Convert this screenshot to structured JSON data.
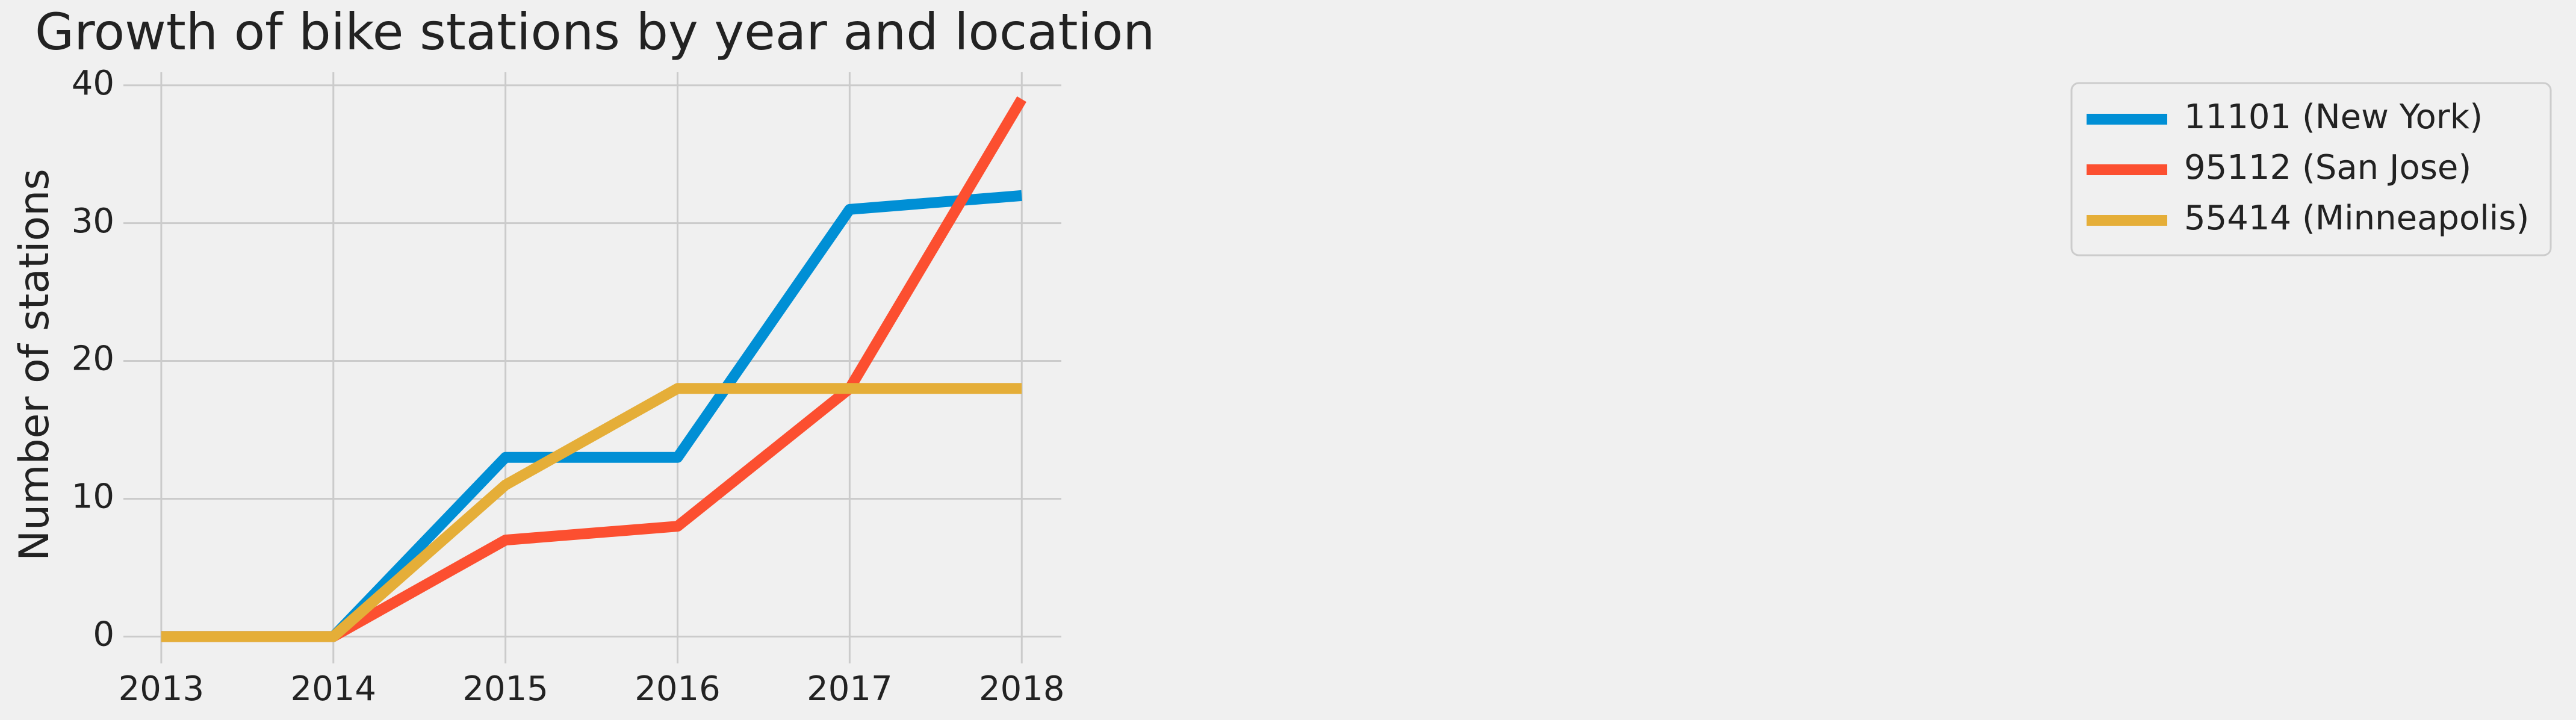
{
  "chart_data": {
    "type": "line",
    "title": "Growth of bike stations by year and location",
    "xlabel": "",
    "ylabel": "Number of stations",
    "x": [
      2013,
      2014,
      2015,
      2016,
      2017,
      2018
    ],
    "xlim": [
      2012.78,
      2018.23
    ],
    "ylim": [
      -1.95,
      40.95
    ],
    "xticks": [
      "2013",
      "2014",
      "2015",
      "2016",
      "2017",
      "2018"
    ],
    "yticks": [
      0,
      10,
      20,
      30,
      40
    ],
    "grid": true,
    "legend_position": "top-right",
    "series": [
      {
        "name": "11101 (New York)",
        "color": "#008fd5",
        "values": [
          0,
          0,
          13,
          13,
          31,
          32
        ]
      },
      {
        "name": "95112 (San Jose)",
        "color": "#fc4f30",
        "values": [
          0,
          0,
          7,
          8,
          18,
          39
        ]
      },
      {
        "name": "55414 (Minneapolis)",
        "color": "#e5ae38",
        "values": [
          0,
          0,
          11,
          18,
          18,
          18
        ]
      }
    ]
  }
}
